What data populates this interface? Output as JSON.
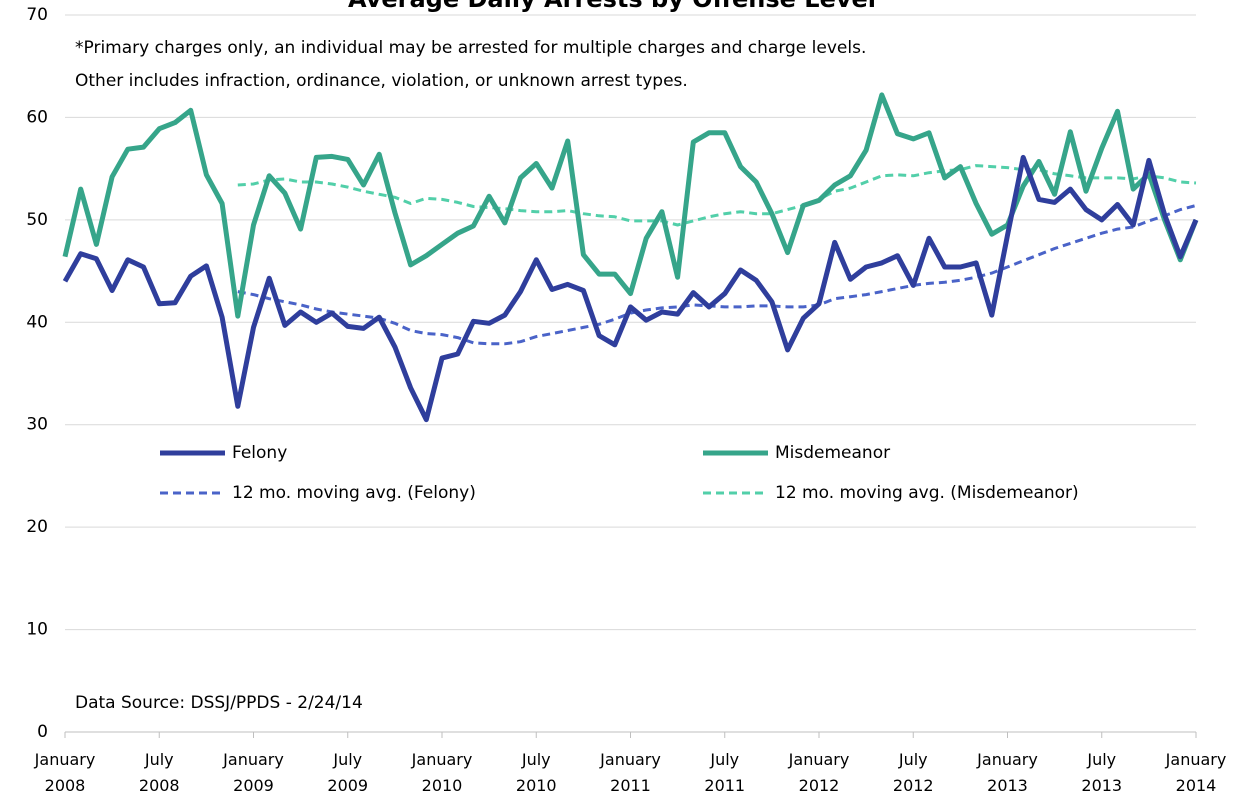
{
  "chart_data": {
    "type": "line",
    "title": "Average Daily Arrests by Offense Level",
    "annotations": [
      "*Primary charges only, an individual may be arrested for multiple charges and charge levels.",
      "Other includes infraction, ordinance, violation, or unknown arrest types.",
      "Data Source: DSSJ/PPDS - 2/24/14"
    ],
    "categories": [
      "January 2008",
      null,
      null,
      null,
      null,
      null,
      "July 2008",
      null,
      null,
      null,
      null,
      null,
      "January 2009",
      null,
      null,
      null,
      null,
      null,
      "July 2009",
      null,
      null,
      null,
      null,
      null,
      "January 2010",
      null,
      null,
      null,
      null,
      null,
      "July 2010",
      null,
      null,
      null,
      null,
      null,
      "January 2011",
      null,
      null,
      null,
      null,
      null,
      "July 2011",
      null,
      null,
      null,
      null,
      null,
      "January 2012",
      null,
      null,
      null,
      null,
      null,
      "July 2012",
      null,
      null,
      null,
      null,
      null,
      "January 2013",
      null,
      null,
      null,
      null,
      null,
      "July 2013",
      null,
      null,
      null,
      null,
      null,
      "January 2014"
    ],
    "ylim": [
      0,
      70
    ],
    "yticks": [
      0,
      10,
      20,
      30,
      40,
      50,
      60,
      70
    ],
    "grid": true,
    "series": [
      {
        "name": "Felony",
        "color": "#2f3e9c",
        "dashed": false,
        "values": [
          44,
          46.7,
          46.2,
          43.1,
          46.1,
          45.4,
          41.8,
          41.9,
          44.5,
          45.5,
          40.5,
          31.8,
          39.5,
          44.3,
          39.7,
          41,
          40,
          40.9,
          39.6,
          39.4,
          40.5,
          37.6,
          33.6,
          30.5,
          36.5,
          36.9,
          40.1,
          39.9,
          40.7,
          43,
          46.1,
          43.2,
          43.7,
          43.1,
          38.7,
          37.8,
          41.5,
          40.2,
          41,
          40.8,
          42.9,
          41.5,
          42.8,
          45.1,
          44.1,
          42,
          37.3,
          40.4,
          41.8,
          47.8,
          44.2,
          45.4,
          45.8,
          46.5,
          43.6,
          48.2,
          45.4,
          45.4,
          45.8,
          40.7,
          48.5,
          56.1,
          52,
          51.7,
          53,
          51,
          50,
          51.5,
          49.5,
          55.8,
          50.5,
          46.4,
          50
        ]
      },
      {
        "name": "Misdemeanor",
        "color": "#36a58a",
        "dashed": false,
        "values": [
          46.4,
          53,
          47.6,
          54.2,
          56.9,
          57.1,
          58.9,
          59.5,
          60.7,
          54.4,
          51.6,
          40.6,
          49.5,
          54.3,
          52.6,
          49.1,
          56.1,
          56.2,
          55.9,
          53.4,
          56.4,
          50.7,
          45.6,
          46.5,
          47.6,
          48.7,
          49.4,
          52.3,
          49.7,
          54.1,
          55.5,
          53.1,
          57.7,
          46.6,
          44.7,
          44.7,
          42.8,
          48.2,
          50.8,
          44.4,
          57.6,
          58.5,
          58.5,
          55.2,
          53.7,
          50.6,
          46.8,
          51.4,
          51.9,
          53.4,
          54.3,
          56.8,
          62.2,
          58.4,
          57.9,
          58.5,
          54.1,
          55.2,
          51.6,
          48.6,
          49.5,
          53.3,
          55.7,
          52.5,
          58.6,
          52.8,
          57,
          60.6,
          53,
          54.5,
          50,
          46.1,
          50
        ]
      },
      {
        "name": "12 mo. moving avg. (Felony)",
        "color": "#4a63c8",
        "dashed": true,
        "values": [
          null,
          null,
          null,
          null,
          null,
          null,
          null,
          null,
          null,
          null,
          null,
          43,
          42.7,
          42.3,
          42,
          41.7,
          41.3,
          41,
          40.8,
          40.6,
          40.4,
          39.9,
          39.2,
          38.9,
          38.8,
          38.5,
          38,
          37.9,
          37.9,
          38.1,
          38.6,
          38.9,
          39.2,
          39.5,
          39.8,
          40.3,
          40.9,
          41.2,
          41.4,
          41.5,
          41.7,
          41.6,
          41.5,
          41.5,
          41.6,
          41.6,
          41.5,
          41.5,
          41.7,
          42.3,
          42.5,
          42.7,
          43,
          43.3,
          43.6,
          43.8,
          43.9,
          44.1,
          44.4,
          44.8,
          45.4,
          46,
          46.6,
          47.2,
          47.7,
          48.2,
          48.7,
          49.1,
          49.3,
          49.9,
          50.4,
          51,
          51.4
        ]
      },
      {
        "name": "12 mo. moving avg. (Misdemeanor)",
        "color": "#52cfa9",
        "dashed": true,
        "values": [
          null,
          null,
          null,
          null,
          null,
          null,
          null,
          null,
          null,
          null,
          null,
          53.4,
          53.5,
          53.9,
          54,
          53.7,
          53.7,
          53.5,
          53.2,
          52.8,
          52.5,
          52.2,
          51.6,
          52.1,
          52,
          51.7,
          51.3,
          51.2,
          51.1,
          50.9,
          50.8,
          50.8,
          50.9,
          50.6,
          50.4,
          50.3,
          49.9,
          49.9,
          49.9,
          49.5,
          49.9,
          50.3,
          50.6,
          50.8,
          50.6,
          50.6,
          51,
          51.4,
          52,
          52.8,
          53.1,
          53.7,
          54.3,
          54.4,
          54.3,
          54.6,
          54.8,
          54.9,
          55.3,
          55.2,
          55.1,
          54.9,
          54.9,
          54.5,
          54.3,
          54.1,
          54.1,
          54.1,
          54,
          54.3,
          54.1,
          53.7,
          53.6
        ]
      }
    ]
  }
}
